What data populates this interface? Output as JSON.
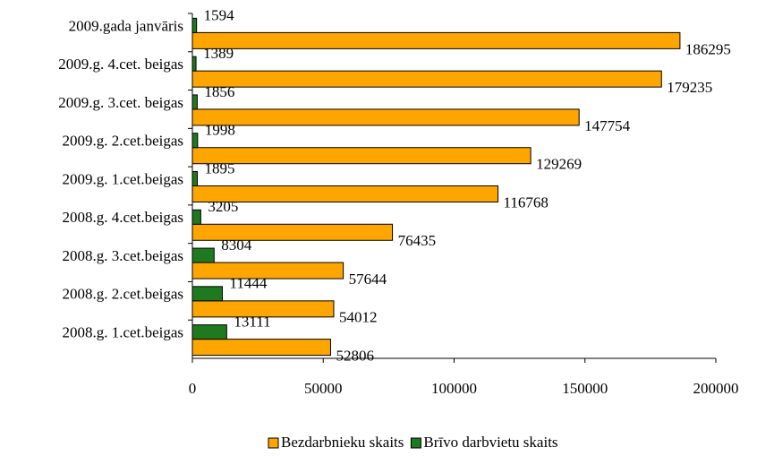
{
  "chart_data": {
    "type": "barh",
    "categories": [
      "2009.gada janvāris",
      "2009.g. 4.cet. beigas",
      "2009.g. 3.cet. beigas",
      "2009.g. 2.cet.beigas",
      "2009.g. 1.cet.beigas",
      "2008.g. 4.cet.beigas",
      "2008.g. 3.cet.beigas",
      "2008.g. 2.cet.beigas",
      "2008.g. 1.cet.beigas"
    ],
    "series": [
      {
        "name": "Bezdarbnieku skaits",
        "color": "#ffa500",
        "values": [
          186295,
          179235,
          147754,
          129269,
          116768,
          76435,
          57644,
          54012,
          52806
        ]
      },
      {
        "name": "Brīvo darbvietu skaits",
        "color": "#1f7a1f",
        "values": [
          1594,
          1389,
          1856,
          1998,
          1895,
          3205,
          8304,
          11444,
          13111
        ]
      }
    ],
    "xlim": [
      0,
      200000
    ],
    "xticks": [
      0,
      50000,
      100000,
      150000,
      200000
    ],
    "legend": "bottom"
  }
}
